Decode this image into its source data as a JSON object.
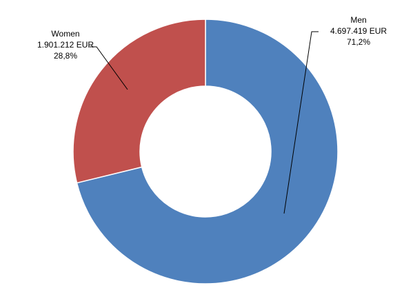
{
  "chart_data": {
    "type": "pie",
    "categories": [
      "Men",
      "Women"
    ],
    "values": [
      4697419,
      1901212
    ],
    "value_labels": [
      "4.697.419 EUR",
      "1.901.212 EUR"
    ],
    "percents": [
      71.2,
      28.8
    ],
    "percent_labels": [
      "71,2%",
      "28,8%"
    ],
    "colors": [
      "#4f81bd",
      "#c0504d"
    ],
    "donut": true
  }
}
